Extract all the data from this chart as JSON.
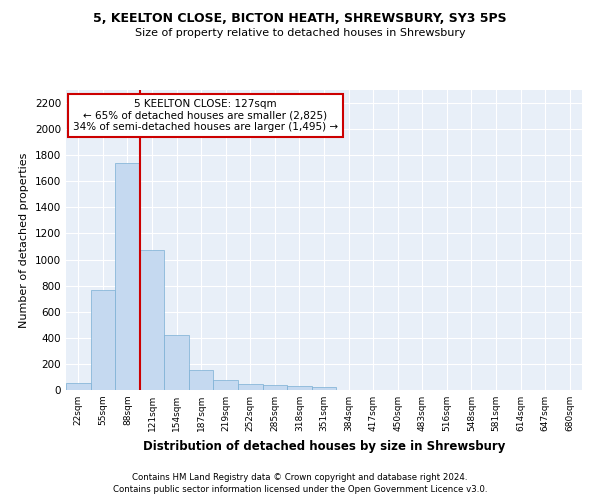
{
  "title_line1": "5, KEELTON CLOSE, BICTON HEATH, SHREWSBURY, SY3 5PS",
  "title_line2": "Size of property relative to detached houses in Shrewsbury",
  "xlabel": "Distribution of detached houses by size in Shrewsbury",
  "ylabel": "Number of detached properties",
  "bar_color": "#c5d9f0",
  "bar_edge_color": "#7aafd4",
  "background_color": "#e8eff8",
  "grid_color": "#ffffff",
  "annotation_box_color": "#cc0000",
  "vline_color": "#cc0000",
  "property_bin_index": 3,
  "annotation_text_line1": "5 KEELTON CLOSE: 127sqm",
  "annotation_text_line2": "← 65% of detached houses are smaller (2,825)",
  "annotation_text_line3": "34% of semi-detached houses are larger (1,495) →",
  "bin_labels": [
    "22sqm",
    "55sqm",
    "88sqm",
    "121sqm",
    "154sqm",
    "187sqm",
    "219sqm",
    "252sqm",
    "285sqm",
    "318sqm",
    "351sqm",
    "384sqm",
    "417sqm",
    "450sqm",
    "483sqm",
    "516sqm",
    "548sqm",
    "581sqm",
    "614sqm",
    "647sqm",
    "680sqm"
  ],
  "bar_values": [
    55,
    765,
    1740,
    1075,
    420,
    155,
    80,
    47,
    38,
    28,
    20,
    0,
    0,
    0,
    0,
    0,
    0,
    0,
    0,
    0,
    0
  ],
  "ylim": [
    0,
    2300
  ],
  "yticks": [
    0,
    200,
    400,
    600,
    800,
    1000,
    1200,
    1400,
    1600,
    1800,
    2000,
    2200
  ],
  "footnote_line1": "Contains HM Land Registry data © Crown copyright and database right 2024.",
  "footnote_line2": "Contains public sector information licensed under the Open Government Licence v3.0."
}
